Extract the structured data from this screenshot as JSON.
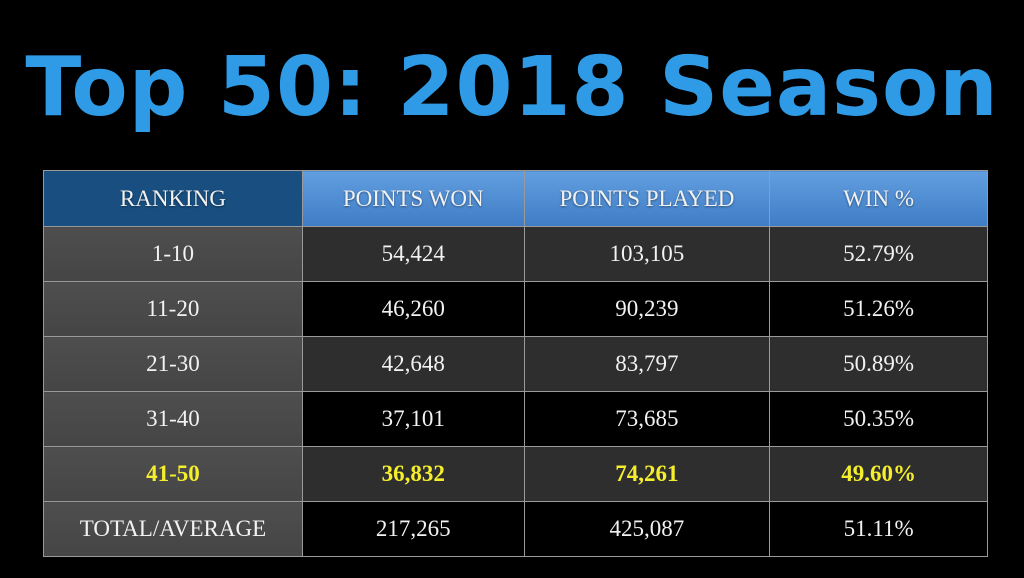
{
  "title": "Top 50: 2018 Season",
  "colors": {
    "title": "#2f9ae6",
    "header_first": "#184f80",
    "header": "#5590d6",
    "highlight_text": "#f5ee2c",
    "ranking_column_bg": "#4a4a4a",
    "row_dark": "#000000",
    "row_alt": "#2e2e2e"
  },
  "table": {
    "headers": [
      "RANKING",
      "POINTS WON",
      "POINTS PLAYED",
      "WIN %"
    ],
    "rows": [
      {
        "ranking": "1-10",
        "points_won": "54,424",
        "points_played": "103,105",
        "win_pct": "52.79%"
      },
      {
        "ranking": "11-20",
        "points_won": "46,260",
        "points_played": "90,239",
        "win_pct": "51.26%"
      },
      {
        "ranking": "21-30",
        "points_won": "42,648",
        "points_played": "83,797",
        "win_pct": "50.89%"
      },
      {
        "ranking": "31-40",
        "points_won": "37,101",
        "points_played": "73,685",
        "win_pct": "50.35%"
      },
      {
        "ranking": "41-50",
        "points_won": "36,832",
        "points_played": "74,261",
        "win_pct": "49.60%",
        "highlighted": true
      },
      {
        "ranking": "TOTAL/AVERAGE",
        "points_won": "217,265",
        "points_played": "425,087",
        "win_pct": "51.11%"
      }
    ]
  },
  "chart_data": {
    "type": "table",
    "title": "Top 50: 2018 Season",
    "columns": [
      "RANKING",
      "POINTS WON",
      "POINTS PLAYED",
      "WIN %"
    ],
    "rows": [
      [
        "1-10",
        54424,
        103105,
        52.79
      ],
      [
        "11-20",
        46260,
        90239,
        51.26
      ],
      [
        "21-30",
        42648,
        83797,
        50.89
      ],
      [
        "31-40",
        37101,
        73685,
        50.35
      ],
      [
        "41-50",
        36832,
        74261,
        49.6
      ],
      [
        "TOTAL/AVERAGE",
        217265,
        425087,
        51.11
      ]
    ],
    "highlighted_row": "41-50"
  }
}
